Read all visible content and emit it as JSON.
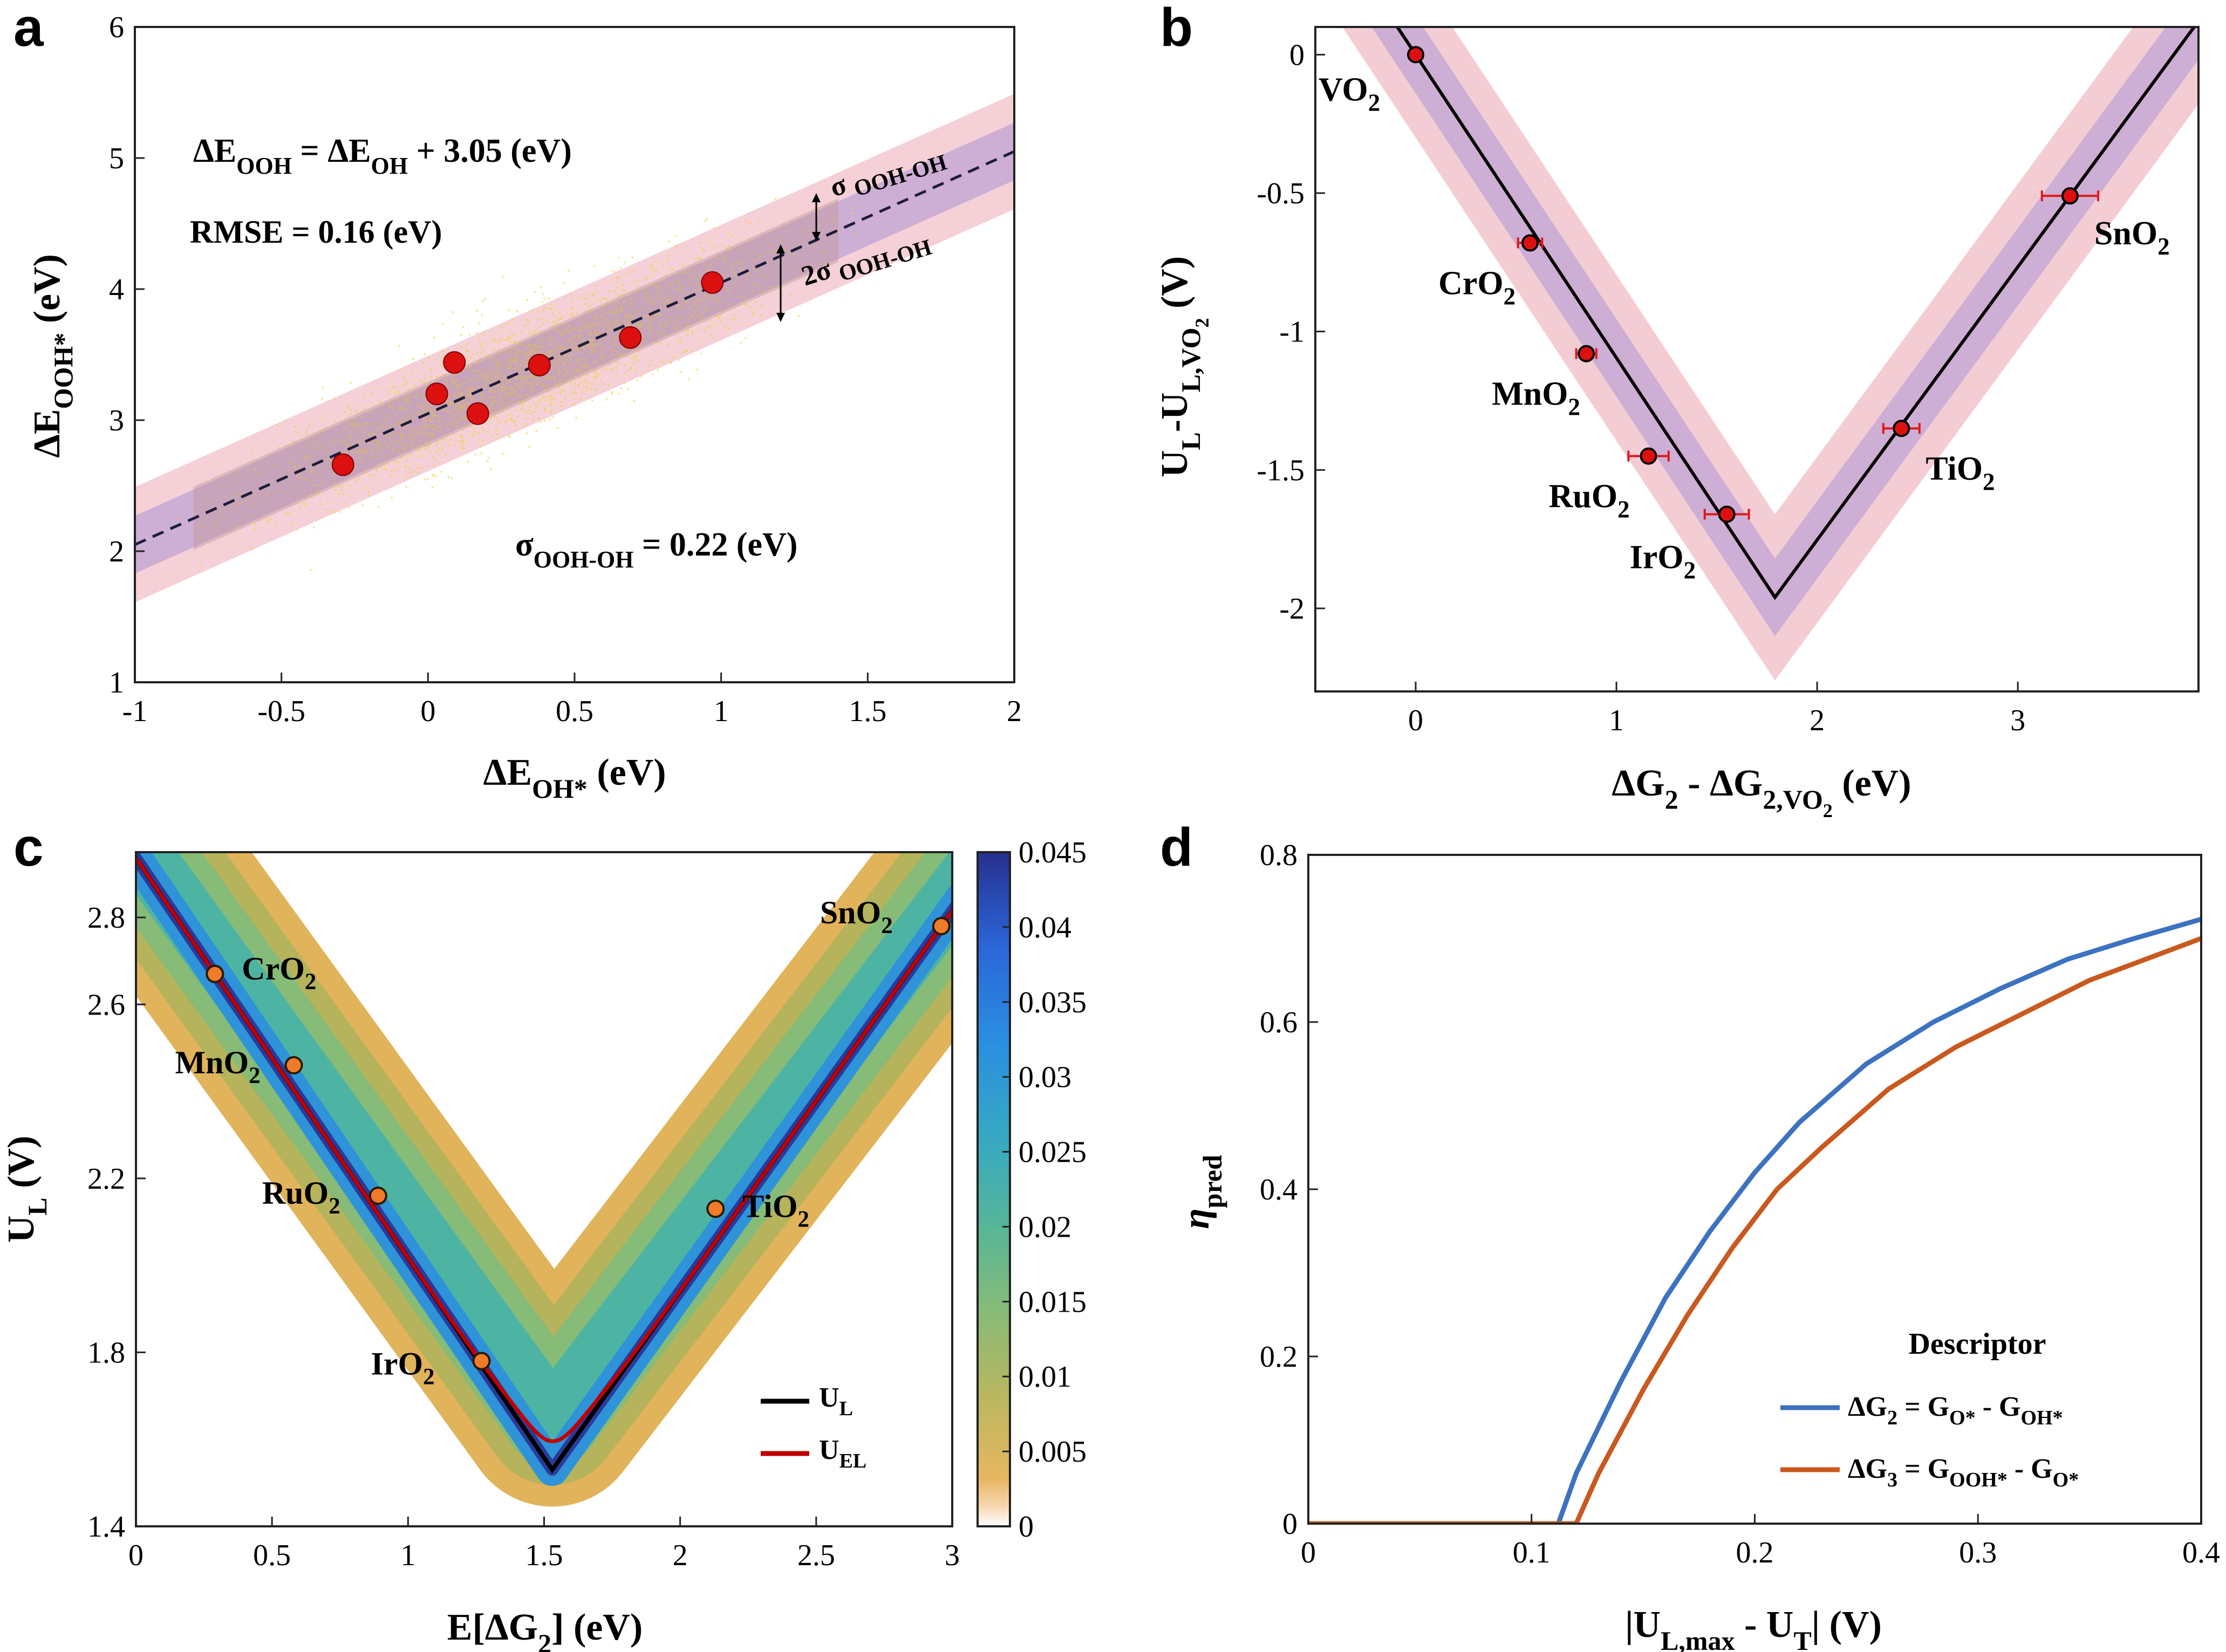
{
  "chart_data": [
    {
      "panel": "a",
      "type": "scatter",
      "xlabel": "ΔE_OH* (eV)",
      "ylabel": "ΔE_OOH* (eV)",
      "xlim": [
        -1,
        2
      ],
      "ylim": [
        1,
        6
      ],
      "xticks": [
        "-1",
        "-0.5",
        "0",
        "0.5",
        "1",
        "1.5",
        "2"
      ],
      "yticks": [
        "1",
        "2",
        "3",
        "4",
        "5",
        "6"
      ],
      "fit": {
        "slope": 1,
        "intercept": 3.05
      },
      "sigma_band": 0.22,
      "points": [
        {
          "x": -0.29,
          "y": 2.66
        },
        {
          "x": 0.03,
          "y": 3.2
        },
        {
          "x": 0.09,
          "y": 3.44
        },
        {
          "x": 0.17,
          "y": 3.05
        },
        {
          "x": 0.38,
          "y": 3.42
        },
        {
          "x": 0.69,
          "y": 3.63
        },
        {
          "x": 0.97,
          "y": 4.05
        }
      ],
      "annotations": {
        "equation": "ΔE_OOH = ΔE_OH + 3.05 (eV)",
        "rmse": "RMSE = 0.16 (eV)",
        "sigma": "σ_OOH-OH = 0.22 (eV)",
        "band1": "σ OOH-OH",
        "band2": "2σ OOH-OH"
      }
    },
    {
      "panel": "b",
      "type": "scatter",
      "xlabel": "ΔG_2 - ΔG_2,VO2 (eV)",
      "ylabel": "U_L-U_L,VO2 (V)",
      "xlim": [
        -0.5,
        3.9
      ],
      "ylim": [
        -2.3,
        0.1
      ],
      "xticks": [
        "0",
        "1",
        "2",
        "3"
      ],
      "yticks": [
        "0",
        "-0.5",
        "-1",
        "-1.5",
        "-2"
      ],
      "vertex": {
        "x": 1.79,
        "y": -1.96
      },
      "points": [
        {
          "label": "VO2",
          "x": 0.0,
          "y": 0.0,
          "xerr": 0.0
        },
        {
          "label": "CrO2",
          "x": 0.57,
          "y": -0.68,
          "xerr": 0.06
        },
        {
          "label": "MnO2",
          "x": 0.85,
          "y": -1.08,
          "xerr": 0.05
        },
        {
          "label": "RuO2",
          "x": 1.16,
          "y": -1.45,
          "xerr": 0.1
        },
        {
          "label": "IrO2",
          "x": 1.55,
          "y": -1.66,
          "xerr": 0.11
        },
        {
          "label": "TiO2",
          "x": 2.42,
          "y": -1.35,
          "xerr": 0.09
        },
        {
          "label": "SnO2",
          "x": 3.26,
          "y": -0.51,
          "xerr": 0.14
        }
      ]
    },
    {
      "panel": "c",
      "type": "heatmap",
      "xlabel": "E[ΔG_2] (eV)",
      "ylabel": "U_L (V)",
      "xlim": [
        0,
        3
      ],
      "ylim": [
        1.4,
        2.95
      ],
      "xticks": [
        "0",
        "0.5",
        "1",
        "1.5",
        "2",
        "2.5",
        "3"
      ],
      "yticks": [
        "1.4",
        "1.8",
        "2.2",
        "2.6",
        "2.8"
      ],
      "colorbar_ticks": [
        "0.045",
        "0.04",
        "0.035",
        "0.03",
        "0.025",
        "0.02",
        "0.015",
        "0.01",
        "0.005",
        "0"
      ],
      "colorbar_range": [
        0,
        0.045
      ],
      "points": [
        {
          "label": "CrO2",
          "x": 0.29,
          "y": 2.67
        },
        {
          "label": "MnO2",
          "x": 0.58,
          "y": 2.46
        },
        {
          "label": "RuO2",
          "x": 0.89,
          "y": 2.16
        },
        {
          "label": "IrO2",
          "x": 1.27,
          "y": 1.78
        },
        {
          "label": "TiO2",
          "x": 2.13,
          "y": 2.13
        },
        {
          "label": "SnO2",
          "x": 2.96,
          "y": 2.78
        }
      ],
      "series": [
        {
          "name": "U_L",
          "color": "#000000"
        },
        {
          "name": "U_EL",
          "color": "#c00000"
        }
      ]
    },
    {
      "panel": "d",
      "type": "line",
      "xlabel": "|U_L,max - U_T| (V)",
      "ylabel": "η_pred",
      "xlim": [
        0,
        0.4
      ],
      "ylim": [
        0,
        0.8
      ],
      "xticks": [
        "0",
        "0.1",
        "0.2",
        "0.3",
        "0.4"
      ],
      "yticks": [
        "0",
        "0.2",
        "0.4",
        "0.6",
        "0.8"
      ],
      "legend_title": "Descriptor",
      "legend_position": "bottom-right",
      "series": [
        {
          "name": "ΔG_2 = G_O* - G_OH*",
          "color": "#3d72c0",
          "x": [
            0,
            0.112,
            0.12,
            0.14,
            0.16,
            0.18,
            0.2,
            0.22,
            0.25,
            0.28,
            0.31,
            0.34,
            0.37,
            0.4
          ],
          "y": [
            0,
            0,
            0.06,
            0.17,
            0.27,
            0.35,
            0.42,
            0.48,
            0.55,
            0.6,
            0.64,
            0.675,
            0.7,
            0.723
          ]
        },
        {
          "name": "ΔG_3 = G_OOH* - G_O*",
          "color": "#c9591e",
          "x": [
            0,
            0.12,
            0.13,
            0.15,
            0.17,
            0.19,
            0.21,
            0.23,
            0.26,
            0.29,
            0.32,
            0.35,
            0.38,
            0.4
          ],
          "y": [
            0,
            0,
            0.06,
            0.16,
            0.25,
            0.33,
            0.4,
            0.45,
            0.52,
            0.57,
            0.61,
            0.65,
            0.68,
            0.7
          ]
        }
      ]
    }
  ]
}
